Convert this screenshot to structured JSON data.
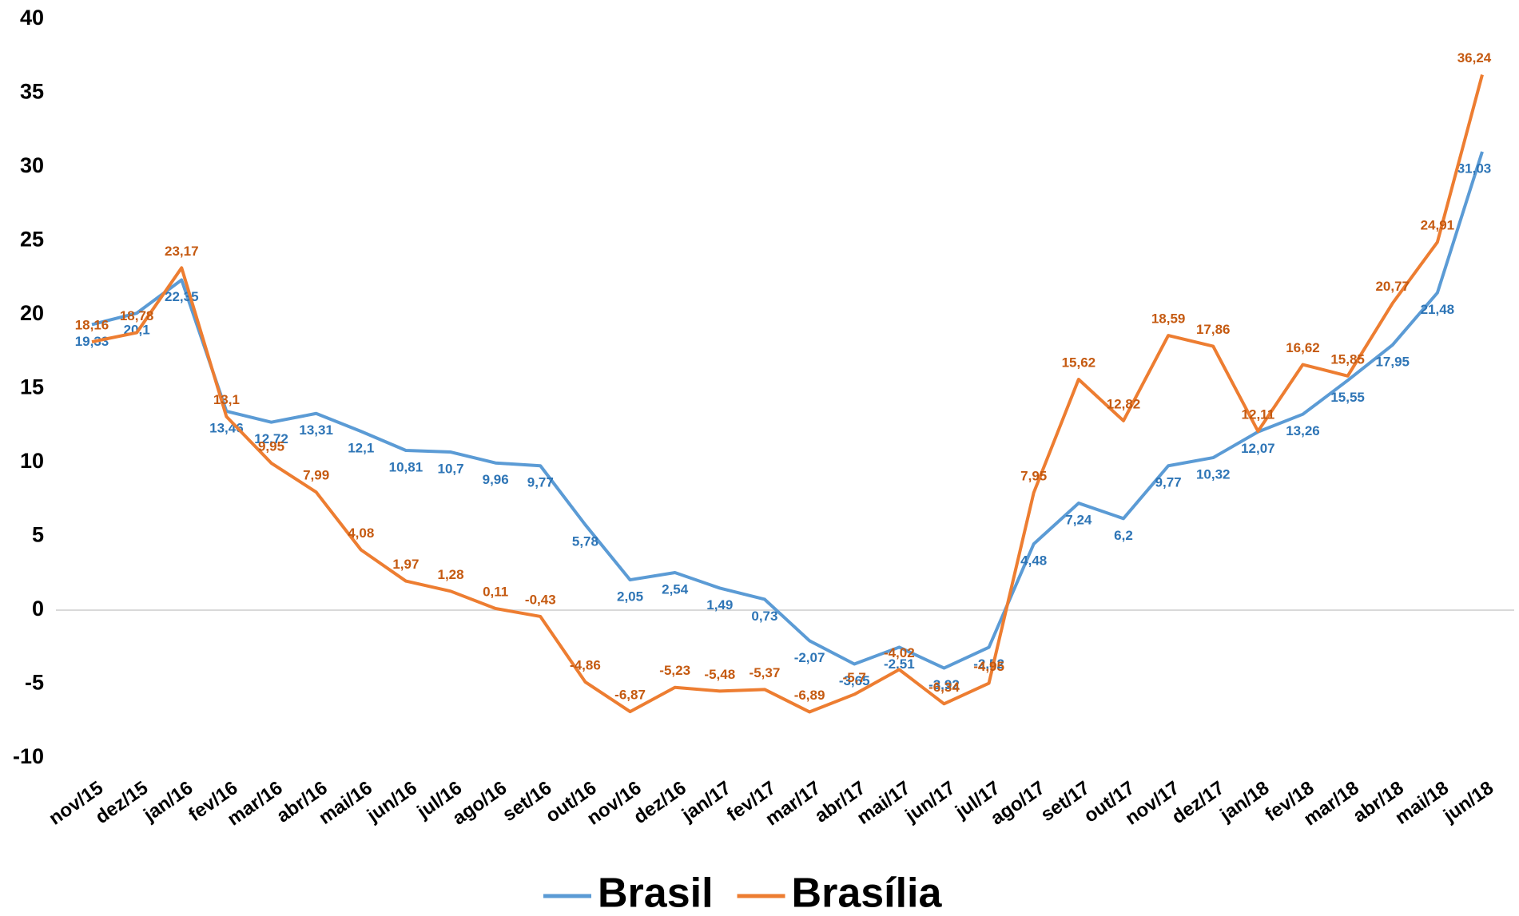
{
  "chart_data": {
    "type": "line",
    "categories": [
      "nov/15",
      "dez/15",
      "jan/16",
      "fev/16",
      "mar/16",
      "abr/16",
      "mai/16",
      "jun/16",
      "jul/16",
      "ago/16",
      "set/16",
      "out/16",
      "nov/16",
      "dez/16",
      "jan/17",
      "fev/17",
      "mar/17",
      "abr/17",
      "mai/17",
      "jun/17",
      "jul/17",
      "ago/17",
      "set/17",
      "out/17",
      "nov/17",
      "dez/17",
      "jan/18",
      "fev/18",
      "mar/18",
      "abr/18",
      "mai/18",
      "jun/18"
    ],
    "series": [
      {
        "name": "Brasil",
        "color": "#5b9bd5",
        "label_color": "#2e75b6",
        "values": [
          19.33,
          20.1,
          22.35,
          13.46,
          12.72,
          13.31,
          12.1,
          10.81,
          10.7,
          9.96,
          9.77,
          5.78,
          2.05,
          2.54,
          1.49,
          0.73,
          -2.07,
          -3.65,
          -2.51,
          -3.92,
          -2.52,
          4.48,
          7.24,
          6.2,
          9.77,
          10.32,
          12.07,
          13.26,
          15.55,
          17.95,
          21.48,
          31.03
        ],
        "value_labels": [
          "19,33",
          "20,1",
          "22,35",
          "13,46",
          "12,72",
          "13,31",
          "12,1",
          "10,81",
          "10,7",
          "9,96",
          "9,77",
          "5,78",
          "2,05",
          "2,54",
          "1,49",
          "0,73",
          "-2,07",
          "-3,65",
          "-2,51",
          "-3,92",
          "-2,52",
          "4,48",
          "7,24",
          "6,2",
          "9,77",
          "10,32",
          "12,07",
          "13,26",
          "15,55",
          "17,95",
          "21,48",
          "31,03"
        ]
      },
      {
        "name": "Brasília",
        "color": "#ed7d31",
        "label_color": "#c55a11",
        "values": [
          18.16,
          18.78,
          23.17,
          13.1,
          9.95,
          7.99,
          4.08,
          1.97,
          1.28,
          0.11,
          -0.43,
          -4.86,
          -6.87,
          -5.23,
          -5.48,
          -5.37,
          -6.89,
          -5.7,
          -4.02,
          -6.34,
          -4.95,
          7.95,
          15.62,
          12.82,
          18.59,
          17.86,
          12.11,
          16.62,
          15.85,
          20.77,
          24.91,
          36.24
        ],
        "value_labels": [
          "18,16",
          "18,78",
          "23,17",
          "13,1",
          "9,95",
          "7,99",
          "4,08",
          "1,97",
          "1,28",
          "0,11",
          "-0,43",
          "-4,86",
          "-6,87",
          "-5,23",
          "-5,48",
          "-5,37",
          "-6,89",
          "-5,7",
          "-4,02",
          "-6,34",
          "-4,95",
          "7,95",
          "15,62",
          "12,82",
          "18,59",
          "17,86",
          "12,11",
          "16,62",
          "15,85",
          "20,77",
          "24,91",
          "36,24"
        ]
      }
    ],
    "ylim": [
      -10,
      40
    ],
    "yticks": [
      -10,
      -5,
      0,
      5,
      10,
      15,
      20,
      25,
      30,
      35,
      40
    ],
    "zero_line": true,
    "legend": "bottom"
  }
}
